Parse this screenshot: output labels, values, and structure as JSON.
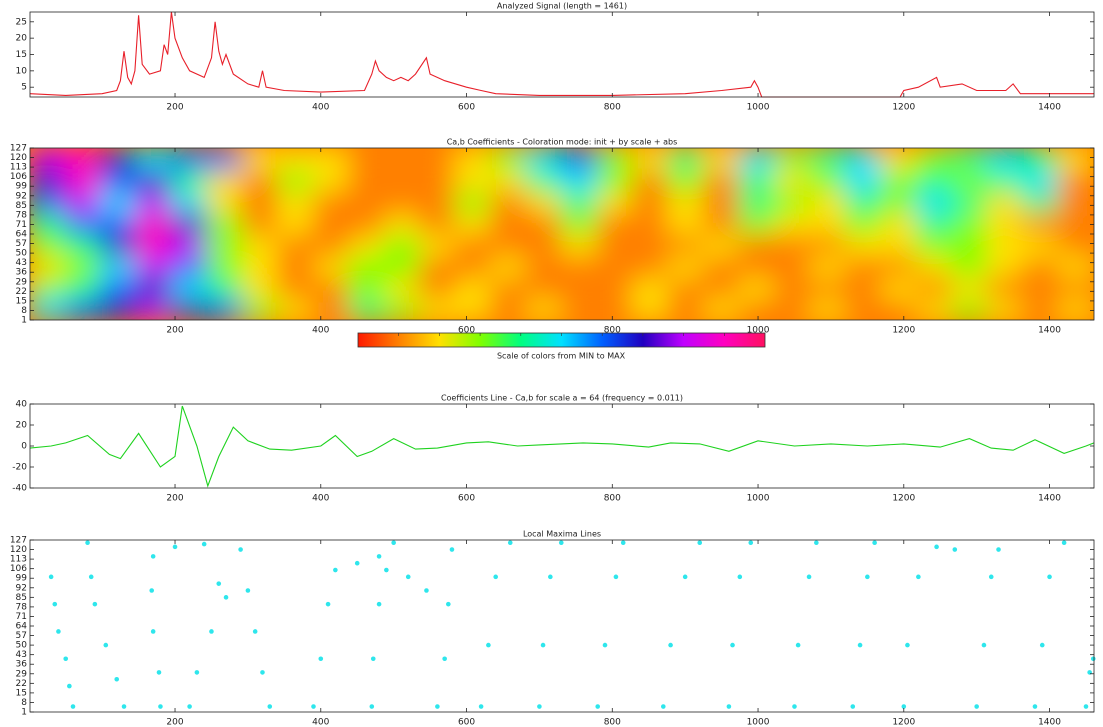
{
  "chart_data": [
    {
      "type": "line",
      "title": "Analyzed Signal (length = 1461)",
      "color": "#e8202a",
      "x": [
        1,
        50,
        100,
        120,
        125,
        130,
        135,
        140,
        145,
        150,
        155,
        165,
        180,
        185,
        190,
        195,
        200,
        210,
        220,
        240,
        250,
        255,
        260,
        265,
        270,
        280,
        300,
        315,
        320,
        325,
        350,
        400,
        460,
        470,
        475,
        480,
        490,
        500,
        510,
        520,
        530,
        545,
        550,
        570,
        600,
        620,
        640,
        700,
        800,
        900,
        950,
        990,
        995,
        1000,
        1005,
        1100,
        1195,
        1200,
        1220,
        1245,
        1250,
        1280,
        1300,
        1340,
        1350,
        1360,
        1400,
        1461
      ],
      "y": [
        3,
        2.5,
        3,
        4,
        7,
        16,
        8,
        6,
        10,
        27,
        12,
        9,
        10,
        18,
        15,
        28,
        20,
        14,
        10,
        8,
        14,
        25,
        16,
        12,
        15,
        9,
        6,
        5,
        10,
        5,
        4,
        3.5,
        4,
        9,
        13,
        10,
        8,
        7,
        8,
        7,
        9,
        14,
        9,
        7,
        5,
        4,
        3,
        2.5,
        2.5,
        3,
        4,
        5,
        7,
        5,
        2,
        2,
        2,
        4,
        5,
        8,
        5,
        6,
        4,
        4,
        6,
        3,
        3,
        3
      ],
      "xlim": [
        1,
        1461
      ],
      "ylim": [
        2,
        28
      ],
      "xticks": [
        200,
        400,
        600,
        800,
        1000,
        1200,
        1400
      ],
      "yticks": [
        5,
        10,
        15,
        20,
        25
      ]
    },
    {
      "type": "heatmap",
      "title": "Ca,b Coefficients - Coloration mode: init + by scale + abs",
      "colorbar_label": "Scale of colors from MIN to MAX",
      "colormap": [
        "#ff1a00",
        "#ff8000",
        "#ffe000",
        "#80ff00",
        "#00ff80",
        "#00e0ff",
        "#0060ff",
        "#2000c0",
        "#c000ff",
        "#ff00c0",
        "#ff1060"
      ],
      "z": [
        [
          0.5,
          0.6,
          0.7,
          0.8,
          0.7,
          0.6,
          0.3,
          0.2,
          0.1,
          0.4,
          0.3,
          0.2,
          0.2,
          0.1,
          0.2,
          0.1,
          0.1,
          0.2,
          0.1,
          0.2,
          0.1,
          0.1,
          0.2,
          0.1,
          0.1,
          0.2,
          0.3,
          0.2,
          0.1,
          0.2
        ],
        [
          0.3,
          0.4,
          0.6,
          0.7,
          0.5,
          0.4,
          0.2,
          0.1,
          0.1,
          0.3,
          0.2,
          0.1,
          0.2,
          0.1,
          0.1,
          0.1,
          0.1,
          0.2,
          0.1,
          0.1,
          0.2,
          0.1,
          0.1,
          0.1,
          0.2,
          0.1,
          0.2,
          0.1,
          0.1,
          0.1
        ],
        [
          0.2,
          0.3,
          0.5,
          0.8,
          0.6,
          0.3,
          0.2,
          0.1,
          0.2,
          0.3,
          0.3,
          0.1,
          0.1,
          0.2,
          0.1,
          0.1,
          0.1,
          0.1,
          0.2,
          0.1,
          0.1,
          0.1,
          0.2,
          0.1,
          0.1,
          0.2,
          0.3,
          0.2,
          0.1,
          0.2
        ],
        [
          0.3,
          0.4,
          0.7,
          0.9,
          0.8,
          0.3,
          0.2,
          0.1,
          0.1,
          0.2,
          0.3,
          0.2,
          0.1,
          0.1,
          0.1,
          0.2,
          0.1,
          0.1,
          0.1,
          0.2,
          0.1,
          0.1,
          0.1,
          0.2,
          0.2,
          0.3,
          0.3,
          0.2,
          0.2,
          0.1
        ],
        [
          0.4,
          0.6,
          0.6,
          0.9,
          0.7,
          0.3,
          0.1,
          0.2,
          0.1,
          0.1,
          0.2,
          0.1,
          0.2,
          0.1,
          0.1,
          0.3,
          0.1,
          0.1,
          0.2,
          0.1,
          0.3,
          0.2,
          0.2,
          0.3,
          0.2,
          0.4,
          0.3,
          0.2,
          0.1,
          0.1
        ],
        [
          0.6,
          0.8,
          0.5,
          0.8,
          0.5,
          0.2,
          0.1,
          0.2,
          0.1,
          0.1,
          0.1,
          0.1,
          0.3,
          0.1,
          0.2,
          0.4,
          0.2,
          0.1,
          0.2,
          0.1,
          0.4,
          0.3,
          0.2,
          0.4,
          0.3,
          0.5,
          0.4,
          0.2,
          0.4,
          0.1
        ],
        [
          0.7,
          0.9,
          0.6,
          0.7,
          0.4,
          0.2,
          0.1,
          0.3,
          0.2,
          0.1,
          0.1,
          0.1,
          0.2,
          0.2,
          0.4,
          0.5,
          0.3,
          0.1,
          0.3,
          0.1,
          0.4,
          0.2,
          0.3,
          0.5,
          0.3,
          0.4,
          0.3,
          0.4,
          0.5,
          0.1
        ],
        [
          0.8,
          0.9,
          0.7,
          0.5,
          0.6,
          0.6,
          0.2,
          0.2,
          0.2,
          0.1,
          0.1,
          0.1,
          0.2,
          0.3,
          0.5,
          0.6,
          0.3,
          0.2,
          0.4,
          0.2,
          0.5,
          0.3,
          0.4,
          0.5,
          0.2,
          0.3,
          0.4,
          0.5,
          0.4,
          0.2
        ]
      ],
      "xlim": [
        1,
        1461
      ],
      "ylim": [
        1,
        127
      ],
      "xticks": [
        200,
        400,
        600,
        800,
        1000,
        1200,
        1400
      ],
      "yticks": [
        1,
        8,
        15,
        22,
        29,
        36,
        43,
        50,
        57,
        64,
        71,
        78,
        85,
        92,
        99,
        106,
        113,
        120,
        127
      ]
    },
    {
      "type": "line",
      "title": "Coefficients Line - Ca,b for scale a = 64  (frequency =   0.011)",
      "color": "#1fd21f",
      "x": [
        1,
        30,
        50,
        80,
        110,
        125,
        150,
        180,
        200,
        210,
        230,
        245,
        260,
        280,
        300,
        330,
        360,
        400,
        420,
        450,
        470,
        500,
        530,
        560,
        600,
        630,
        670,
        700,
        760,
        800,
        850,
        880,
        920,
        960,
        1000,
        1050,
        1100,
        1150,
        1200,
        1250,
        1290,
        1320,
        1350,
        1380,
        1420,
        1450,
        1461
      ],
      "y": [
        -2,
        0,
        3,
        10,
        -8,
        -12,
        12,
        -20,
        -10,
        38,
        0,
        -38,
        -10,
        18,
        5,
        -3,
        -4,
        0,
        10,
        -10,
        -5,
        7,
        -3,
        -2,
        3,
        4,
        0,
        1,
        3,
        2,
        -1,
        3,
        2,
        -5,
        5,
        0,
        2,
        0,
        2,
        -1,
        7,
        -2,
        -4,
        6,
        -7,
        0,
        3
      ],
      "xlim": [
        1,
        1461
      ],
      "ylim": [
        -40,
        40
      ],
      "xticks": [
        200,
        400,
        600,
        800,
        1000,
        1200,
        1400
      ],
      "yticks": [
        -40,
        -20,
        0,
        20,
        40
      ]
    },
    {
      "type": "scatter",
      "title": "Local Maxima Lines",
      "color": "#2ee6ec",
      "x": [
        60,
        55,
        50,
        40,
        35,
        30,
        130,
        120,
        105,
        90,
        85,
        80,
        180,
        178,
        170,
        168,
        170,
        200,
        240,
        220,
        230,
        250,
        270,
        260,
        330,
        320,
        310,
        300,
        290,
        390,
        400,
        410,
        420,
        450,
        480,
        500,
        470,
        472,
        480,
        490,
        520,
        545,
        560,
        570,
        575,
        580,
        620,
        630,
        640,
        660,
        700,
        705,
        715,
        730,
        780,
        790,
        805,
        815,
        870,
        880,
        900,
        920,
        960,
        965,
        975,
        990,
        1050,
        1055,
        1070,
        1080,
        1130,
        1140,
        1150,
        1160,
        1200,
        1205,
        1220,
        1245,
        1270,
        1300,
        1310,
        1320,
        1330,
        1380,
        1390,
        1400,
        1420,
        1450,
        1455,
        1460
      ],
      "y": [
        5,
        20,
        40,
        60,
        80,
        100,
        5,
        25,
        50,
        80,
        100,
        125,
        5,
        30,
        60,
        90,
        115,
        122,
        124,
        5,
        30,
        60,
        85,
        95,
        5,
        30,
        60,
        90,
        120,
        5,
        40,
        80,
        105,
        110,
        115,
        125,
        5,
        40,
        80,
        105,
        100,
        90,
        5,
        40,
        80,
        120,
        5,
        50,
        100,
        125,
        5,
        50,
        100,
        125,
        5,
        50,
        100,
        125,
        5,
        50,
        100,
        125,
        5,
        50,
        100,
        125,
        5,
        50,
        100,
        125,
        5,
        50,
        100,
        125,
        5,
        50,
        100,
        122,
        120,
        5,
        50,
        100,
        120,
        5,
        50,
        100,
        125,
        5,
        30,
        40
      ],
      "xlim": [
        1,
        1461
      ],
      "ylim": [
        1,
        127
      ],
      "xticks": [
        200,
        400,
        600,
        800,
        1000,
        1200,
        1400
      ],
      "yticks": [
        1,
        8,
        15,
        22,
        29,
        36,
        43,
        50,
        57,
        64,
        71,
        78,
        85,
        92,
        99,
        106,
        113,
        120,
        127
      ]
    }
  ]
}
